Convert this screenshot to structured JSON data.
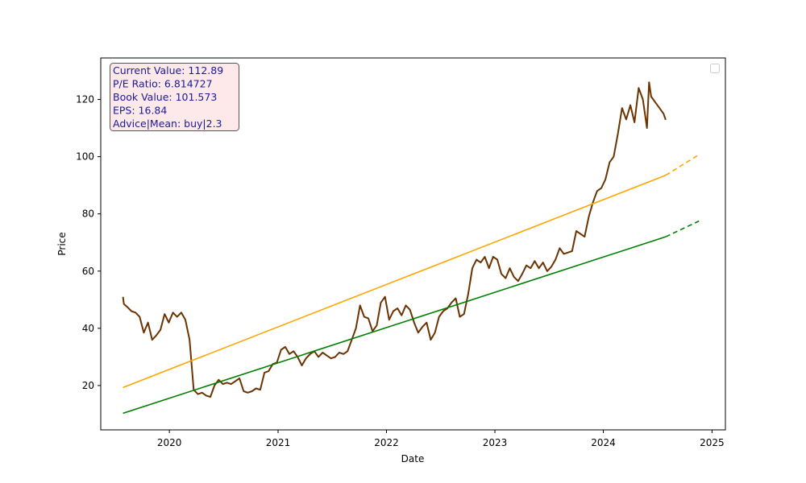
{
  "chart_data": {
    "type": "line",
    "xlabel": "Date",
    "ylabel": "Price",
    "xlim": [
      "2019-05-15",
      "2025-02-15"
    ],
    "ylim": [
      4.5,
      134.5
    ],
    "x_ticks": [
      "2020",
      "2021",
      "2022",
      "2023",
      "2024",
      "2025"
    ],
    "y_ticks": [
      20,
      40,
      60,
      80,
      100,
      120
    ],
    "grid": false,
    "legend": "top-right (empty)",
    "info_box": {
      "lines": [
        "Current Value: 112.89",
        "P/E Ratio: 6.814727",
        "Book Value: 101.573",
        "EPS: 16.84",
        "Advice|Mean: buy|2.3"
      ],
      "background": "#fde9e9",
      "text_color": "#1a1a9a"
    },
    "series": [
      {
        "color": "#6b3300",
        "style": "solid",
        "points": [
          [
            "2019-07-29",
            51.0
          ],
          [
            "2019-08-01",
            48.5
          ],
          [
            "2019-08-12",
            47.5
          ],
          [
            "2019-08-26",
            46.0
          ],
          [
            "2019-09-09",
            45.5
          ],
          [
            "2019-09-23",
            44.0
          ],
          [
            "2019-10-07",
            38.5
          ],
          [
            "2019-10-21",
            42.0
          ],
          [
            "2019-11-04",
            36.0
          ],
          [
            "2019-11-18",
            37.5
          ],
          [
            "2019-12-02",
            39.5
          ],
          [
            "2019-12-16",
            45.0
          ],
          [
            "2019-12-30",
            42.0
          ],
          [
            "2020-01-13",
            45.5
          ],
          [
            "2020-01-27",
            44.0
          ],
          [
            "2020-02-10",
            45.5
          ],
          [
            "2020-02-24",
            43.0
          ],
          [
            "2020-03-09",
            36.0
          ],
          [
            "2020-03-23",
            18.5
          ],
          [
            "2020-04-06",
            17.0
          ],
          [
            "2020-04-20",
            17.5
          ],
          [
            "2020-05-04",
            16.5
          ],
          [
            "2020-05-18",
            16.0
          ],
          [
            "2020-06-01",
            20.0
          ],
          [
            "2020-06-15",
            22.0
          ],
          [
            "2020-06-29",
            20.5
          ],
          [
            "2020-07-13",
            21.0
          ],
          [
            "2020-07-27",
            20.5
          ],
          [
            "2020-08-10",
            21.5
          ],
          [
            "2020-08-24",
            22.5
          ],
          [
            "2020-09-07",
            18.0
          ],
          [
            "2020-09-21",
            17.5
          ],
          [
            "2020-10-05",
            18.0
          ],
          [
            "2020-10-19",
            19.0
          ],
          [
            "2020-11-02",
            18.5
          ],
          [
            "2020-11-16",
            24.5
          ],
          [
            "2020-11-30",
            25.0
          ],
          [
            "2020-12-14",
            27.5
          ],
          [
            "2020-12-28",
            28.0
          ],
          [
            "2021-01-11",
            32.5
          ],
          [
            "2021-01-25",
            33.5
          ],
          [
            "2021-02-08",
            31.0
          ],
          [
            "2021-02-22",
            32.0
          ],
          [
            "2021-03-08",
            30.0
          ],
          [
            "2021-03-22",
            27.0
          ],
          [
            "2021-04-05",
            29.5
          ],
          [
            "2021-04-19",
            31.0
          ],
          [
            "2021-05-03",
            32.0
          ],
          [
            "2021-05-17",
            30.0
          ],
          [
            "2021-05-31",
            31.5
          ],
          [
            "2021-06-14",
            30.5
          ],
          [
            "2021-06-28",
            29.5
          ],
          [
            "2021-07-12",
            30.0
          ],
          [
            "2021-07-26",
            31.5
          ],
          [
            "2021-08-09",
            31.0
          ],
          [
            "2021-08-23",
            32.0
          ],
          [
            "2021-09-06",
            36.0
          ],
          [
            "2021-09-20",
            40.0
          ],
          [
            "2021-10-04",
            48.0
          ],
          [
            "2021-10-18",
            44.0
          ],
          [
            "2021-11-01",
            43.5
          ],
          [
            "2021-11-15",
            39.0
          ],
          [
            "2021-11-29",
            41.0
          ],
          [
            "2021-12-13",
            49.0
          ],
          [
            "2021-12-27",
            51.0
          ],
          [
            "2022-01-10",
            43.0
          ],
          [
            "2022-01-24",
            46.0
          ],
          [
            "2022-02-07",
            47.0
          ],
          [
            "2022-02-21",
            44.5
          ],
          [
            "2022-03-07",
            48.0
          ],
          [
            "2022-03-21",
            46.5
          ],
          [
            "2022-04-04",
            42.0
          ],
          [
            "2022-04-18",
            38.5
          ],
          [
            "2022-05-02",
            40.5
          ],
          [
            "2022-05-16",
            42.0
          ],
          [
            "2022-05-30",
            36.0
          ],
          [
            "2022-06-13",
            38.5
          ],
          [
            "2022-06-27",
            44.0
          ],
          [
            "2022-07-11",
            46.0
          ],
          [
            "2022-07-25",
            47.0
          ],
          [
            "2022-08-08",
            49.0
          ],
          [
            "2022-08-22",
            50.5
          ],
          [
            "2022-09-05",
            44.0
          ],
          [
            "2022-09-19",
            45.0
          ],
          [
            "2022-10-03",
            52.0
          ],
          [
            "2022-10-17",
            61.0
          ],
          [
            "2022-10-31",
            64.0
          ],
          [
            "2022-11-14",
            63.0
          ],
          [
            "2022-11-28",
            65.0
          ],
          [
            "2022-12-12",
            61.0
          ],
          [
            "2022-12-26",
            65.0
          ],
          [
            "2023-01-09",
            64.0
          ],
          [
            "2023-01-23",
            59.0
          ],
          [
            "2023-02-06",
            57.5
          ],
          [
            "2023-02-20",
            61.0
          ],
          [
            "2023-03-06",
            58.0
          ],
          [
            "2023-03-20",
            56.5
          ],
          [
            "2023-04-03",
            59.0
          ],
          [
            "2023-04-17",
            62.0
          ],
          [
            "2023-05-01",
            61.0
          ],
          [
            "2023-05-15",
            63.5
          ],
          [
            "2023-05-29",
            61.0
          ],
          [
            "2023-06-12",
            63.0
          ],
          [
            "2023-06-26",
            60.0
          ],
          [
            "2023-07-10",
            61.5
          ],
          [
            "2023-07-24",
            64.0
          ],
          [
            "2023-08-07",
            68.0
          ],
          [
            "2023-08-21",
            66.0
          ],
          [
            "2023-09-04",
            66.5
          ],
          [
            "2023-09-18",
            67.0
          ],
          [
            "2023-10-02",
            74.0
          ],
          [
            "2023-10-16",
            73.0
          ],
          [
            "2023-10-30",
            72.0
          ],
          [
            "2023-11-13",
            79.0
          ],
          [
            "2023-11-27",
            84.0
          ],
          [
            "2023-12-11",
            88.0
          ],
          [
            "2023-12-25",
            89.0
          ],
          [
            "2024-01-08",
            92.0
          ],
          [
            "2024-01-22",
            98.0
          ],
          [
            "2024-02-05",
            100.0
          ],
          [
            "2024-02-19",
            108.0
          ],
          [
            "2024-03-04",
            117.0
          ],
          [
            "2024-03-18",
            113.0
          ],
          [
            "2024-04-01",
            118.0
          ],
          [
            "2024-04-15",
            112.0
          ],
          [
            "2024-04-29",
            124.0
          ],
          [
            "2024-05-13",
            120.0
          ],
          [
            "2024-05-27",
            110.0
          ],
          [
            "2024-06-03",
            126.0
          ],
          [
            "2024-06-10",
            121.0
          ],
          [
            "2024-06-24",
            119.0
          ],
          [
            "2024-07-08",
            117.0
          ],
          [
            "2024-07-22",
            115.0
          ],
          [
            "2024-07-29",
            112.89
          ]
        ]
      },
      {
        "color": "#ffa500",
        "style": "solid",
        "points": [
          [
            "2019-07-29",
            19.3
          ],
          [
            "2024-07-29",
            93.5
          ]
        ]
      },
      {
        "color": "#ffa500",
        "style": "dashed",
        "points": [
          [
            "2024-07-29",
            93.5
          ],
          [
            "2024-11-18",
            100.7
          ]
        ]
      },
      {
        "color": "#008000",
        "style": "solid",
        "points": [
          [
            "2019-07-29",
            10.3
          ],
          [
            "2024-07-29",
            72.0
          ]
        ]
      },
      {
        "color": "#008000",
        "style": "dashed",
        "points": [
          [
            "2024-07-29",
            72.0
          ],
          [
            "2024-11-18",
            77.5
          ]
        ]
      }
    ]
  }
}
